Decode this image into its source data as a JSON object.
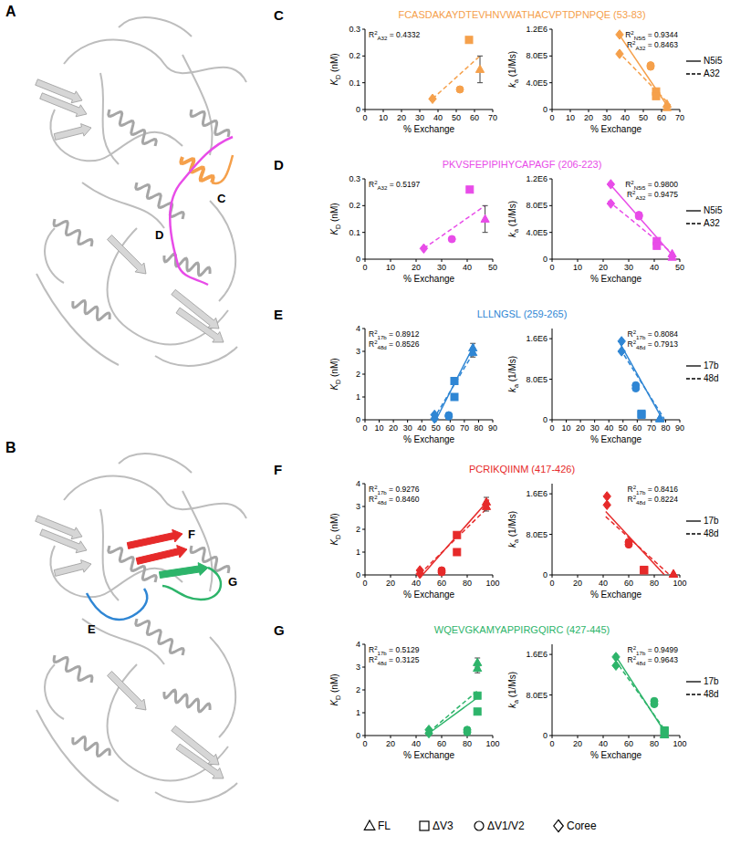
{
  "constructs": [
    {
      "label": "FL",
      "marker": "triangle"
    },
    {
      "label": "ΔV3",
      "marker": "square"
    },
    {
      "label": "ΔV1/V2",
      "marker": "circle"
    },
    {
      "label": "Coree",
      "marker": "diamond"
    }
  ],
  "structures": [
    {
      "label": "A",
      "regions": [
        {
          "label": "C",
          "color": "#f5a04b"
        },
        {
          "label": "D",
          "color": "#e84ce8"
        }
      ]
    },
    {
      "label": "B",
      "regions": [
        {
          "label": "F",
          "color": "#e62a2a"
        },
        {
          "label": "G",
          "color": "#2db46a"
        },
        {
          "label": "E",
          "color": "#2f86d4"
        }
      ]
    }
  ],
  "rows": [
    {
      "label": "C",
      "title": "FCASDAKAYDTEVHNVWATHACVPTDPNPQE (53-83)",
      "color": "#f5a04b",
      "legend": [
        {
          "name": "N5i5",
          "line_style": "solid"
        },
        {
          "name": "A32",
          "line_style": "dashed"
        }
      ]
    },
    {
      "label": "D",
      "title": "PKVSFEPIPIHYCAPAGF (206-223)",
      "color": "#e84ce8",
      "legend": [
        {
          "name": "N5i5",
          "line_style": "solid"
        },
        {
          "name": "A32",
          "line_style": "dashed"
        }
      ]
    },
    {
      "label": "E",
      "title": "LLLNGSL (259-265)",
      "color": "#2f86d4",
      "legend": [
        {
          "name": "17b",
          "line_style": "solid"
        },
        {
          "name": "48d",
          "line_style": "dashed"
        }
      ]
    },
    {
      "label": "F",
      "title": "PCRIKQIINM (417-426)",
      "color": "#e62a2a",
      "legend": [
        {
          "name": "17b",
          "line_style": "solid"
        },
        {
          "name": "48d",
          "line_style": "dashed"
        }
      ]
    },
    {
      "label": "G",
      "title": "WQEVGKAMYAPPIRGQIRC (427-445)",
      "color": "#2db46a",
      "legend": [
        {
          "name": "17b",
          "line_style": "solid"
        },
        {
          "name": "48d",
          "line_style": "dashed"
        }
      ]
    }
  ],
  "chart_data": [
    {
      "type": "scatter",
      "x_label": "% Exchange",
      "y_label": {
        "text": "K",
        "sub": "D",
        "rest": " (nM)"
      },
      "xlim": [
        0,
        70
      ],
      "xticks": [
        0,
        10,
        20,
        30,
        40,
        50,
        60,
        70
      ],
      "ylim": [
        0,
        0.3
      ],
      "yticks": [
        0,
        0.1,
        0.2,
        0.3
      ],
      "series": [
        {
          "name": "A32",
          "color": "#f5a04b",
          "line_style": "dashed",
          "x": [
            63,
            57,
            52,
            37
          ],
          "values": [
            0.15,
            0.26,
            0.075,
            0.04
          ],
          "errors": [
            0.05,
            null,
            null,
            null
          ],
          "fit": {
            "x": [
              37,
              63
            ],
            "values": [
              0.04,
              0.2
            ]
          },
          "annotation": {
            "text": "R",
            "sup": "2",
            "sub": "A32",
            "rest": " = 0.4332"
          }
        }
      ]
    },
    {
      "type": "scatter",
      "x_label": "% Exchange",
      "y_label": {
        "text": "k",
        "sub": "a",
        "rest": " (1/Ms)"
      },
      "xlim": [
        0,
        70
      ],
      "xticks": [
        0,
        10,
        20,
        30,
        40,
        50,
        60,
        70
      ],
      "ylim": [
        0,
        1200000
      ],
      "yticks": [
        0,
        {
          "value": 400000,
          "label": "4.0E5"
        },
        {
          "value": 800000,
          "label": "8.0E5"
        },
        {
          "value": 1200000,
          "label": "1.2E6"
        }
      ],
      "series": [
        {
          "name": "N5i5",
          "color": "#f5a04b",
          "line_style": "solid",
          "x": [
            63,
            57,
            54,
            37
          ],
          "values": [
            80000,
            270000,
            660000,
            1120000
          ],
          "fit": {
            "x": [
              36,
              64
            ],
            "values": [
              1150000,
              20000
            ]
          },
          "annotation": {
            "text": "R",
            "sup": "2",
            "sub": "N5i5",
            "rest": " = 0.9344"
          }
        },
        {
          "name": "A32",
          "color": "#f5a04b",
          "line_style": "dashed",
          "x": [
            63,
            57,
            54,
            37
          ],
          "values": [
            30000,
            200000,
            640000,
            830000
          ],
          "fit": {
            "x": [
              36,
              65
            ],
            "values": [
              870000,
              60000
            ]
          },
          "annotation": {
            "text": "R",
            "sup": "2",
            "sub": "A32",
            "rest": " = 0.8463"
          }
        }
      ]
    },
    {
      "type": "scatter",
      "x_label": "% Exchange",
      "y_label": {
        "text": "K",
        "sub": "D",
        "rest": " (nM)"
      },
      "xlim": [
        0,
        50
      ],
      "xticks": [
        0,
        10,
        20,
        30,
        40,
        50
      ],
      "ylim": [
        0,
        0.3
      ],
      "yticks": [
        0,
        0.1,
        0.2,
        0.3
      ],
      "series": [
        {
          "name": "A32",
          "color": "#e84ce8",
          "line_style": "dashed",
          "x": [
            47,
            41,
            34,
            23
          ],
          "values": [
            0.15,
            0.26,
            0.075,
            0.04
          ],
          "errors": [
            0.05,
            null,
            null,
            null
          ],
          "fit": {
            "x": [
              23,
              47
            ],
            "values": [
              0.04,
              0.2
            ]
          },
          "annotation": {
            "text": "R",
            "sup": "2",
            "sub": "A32",
            "rest": " = 0.5197"
          }
        }
      ]
    },
    {
      "type": "scatter",
      "x_label": "% Exchange",
      "y_label": {
        "text": "k",
        "sub": "a",
        "rest": " (1/Ms)"
      },
      "xlim": [
        0,
        50
      ],
      "xticks": [
        0,
        10,
        20,
        30,
        40,
        50
      ],
      "ylim": [
        0,
        1200000
      ],
      "yticks": [
        0,
        {
          "value": 400000,
          "label": "4.0E5"
        },
        {
          "value": 800000,
          "label": "8.0E5"
        },
        {
          "value": 1200000,
          "label": "1.2E6"
        }
      ],
      "series": [
        {
          "name": "N5i5",
          "color": "#e84ce8",
          "line_style": "solid",
          "x": [
            47,
            41,
            34,
            23
          ],
          "values": [
            80000,
            270000,
            660000,
            1120000
          ],
          "fit": {
            "x": [
              22,
              48
            ],
            "values": [
              1150000,
              20000
            ]
          },
          "annotation": {
            "text": "R",
            "sup": "2",
            "sub": "N5i5",
            "rest": " = 0.9800"
          }
        },
        {
          "name": "A32",
          "color": "#e84ce8",
          "line_style": "dashed",
          "x": [
            47,
            41,
            34,
            23
          ],
          "values": [
            30000,
            200000,
            640000,
            830000
          ],
          "fit": {
            "x": [
              22,
              48
            ],
            "values": [
              870000,
              60000
            ]
          },
          "annotation": {
            "text": "R",
            "sup": "2",
            "sub": "A32",
            "rest": " = 0.9475"
          }
        }
      ]
    },
    {
      "type": "scatter",
      "x_label": "% Exchange",
      "y_label": {
        "text": "K",
        "sub": "D",
        "rest": " (nM)"
      },
      "xlim": [
        0,
        90
      ],
      "xticks": [
        0,
        10,
        20,
        30,
        40,
        50,
        60,
        70,
        80,
        90
      ],
      "ylim": [
        0,
        4
      ],
      "yticks": [
        0,
        1,
        2,
        3,
        4
      ],
      "series": [
        {
          "name": "17b",
          "color": "#2f86d4",
          "line_style": "solid",
          "x": [
            76,
            63,
            59,
            49
          ],
          "values": [
            3.15,
            1.7,
            0.2,
            0.22
          ],
          "errors": [
            0.2,
            null,
            null,
            null
          ],
          "fit": {
            "x": [
              50,
              77
            ],
            "values": [
              0,
              3.3
            ]
          },
          "annotation": {
            "text": "R",
            "sup": "2",
            "sub": "17b",
            "rest": " = 0.8912"
          }
        },
        {
          "name": "48d",
          "color": "#2f86d4",
          "line_style": "dashed",
          "x": [
            76,
            63,
            59,
            49
          ],
          "values": [
            2.95,
            1.0,
            0.15,
            0.05
          ],
          "errors": [
            0.2,
            null,
            null,
            null
          ],
          "fit": {
            "x": [
              48,
              77
            ],
            "values": [
              0,
              3.0
            ]
          },
          "annotation": {
            "text": "R",
            "sup": "2",
            "sub": "48d",
            "rest": " = 0.8526"
          }
        }
      ]
    },
    {
      "type": "scatter",
      "x_label": "% Exchange",
      "y_label": {
        "text": "k",
        "sub": "a",
        "rest": " (1/Ms)"
      },
      "xlim": [
        0,
        90
      ],
      "xticks": [
        0,
        10,
        20,
        30,
        40,
        50,
        60,
        70,
        80,
        90
      ],
      "ylim": [
        0,
        1800000
      ],
      "yticks": [
        0,
        {
          "value": 800000,
          "label": "8.0E5"
        },
        {
          "value": 1600000,
          "label": "1.6E6"
        }
      ],
      "series": [
        {
          "name": "17b",
          "color": "#2f86d4",
          "line_style": "solid",
          "x": [
            76,
            63,
            59,
            49
          ],
          "values": [
            30000,
            100000,
            680000,
            1550000
          ],
          "fit": {
            "x": [
              48,
              78
            ],
            "values": [
              1500000,
              0
            ]
          },
          "annotation": {
            "text": "R",
            "sup": "2",
            "sub": "17b",
            "rest": " = 0.8084"
          }
        },
        {
          "name": "48d",
          "color": "#2f86d4",
          "line_style": "dashed",
          "x": [
            76,
            63,
            59,
            49
          ],
          "values": [
            20000,
            120000,
            620000,
            1350000
          ],
          "fit": {
            "x": [
              48,
              79
            ],
            "values": [
              1400000,
              20000
            ]
          },
          "annotation": {
            "text": "R",
            "sup": "2",
            "sub": "48d",
            "rest": " = 0.7913"
          }
        }
      ]
    },
    {
      "type": "scatter",
      "x_label": "% Exchange",
      "y_label": {
        "text": "K",
        "sub": "D",
        "rest": " (nM)"
      },
      "xlim": [
        0,
        100
      ],
      "xticks": [
        0,
        20,
        40,
        60,
        80,
        100
      ],
      "ylim": [
        0,
        4
      ],
      "yticks": [
        0,
        1,
        2,
        3,
        4
      ],
      "series": [
        {
          "name": "17b",
          "color": "#e62a2a",
          "line_style": "solid",
          "x": [
            95,
            72,
            60,
            43
          ],
          "values": [
            3.2,
            1.75,
            0.2,
            0.2
          ],
          "errors": [
            0.2,
            null,
            null,
            null
          ],
          "fit": {
            "x": [
              45,
              97
            ],
            "values": [
              0,
              3.3
            ]
          },
          "annotation": {
            "text": "R",
            "sup": "2",
            "sub": "17b",
            "rest": " = 0.9276"
          }
        },
        {
          "name": "48d",
          "color": "#e62a2a",
          "line_style": "dashed",
          "x": [
            95,
            72,
            60,
            43
          ],
          "values": [
            3.0,
            1.0,
            0.12,
            0.05
          ],
          "errors": [
            0.2,
            null,
            null,
            null
          ],
          "fit": {
            "x": [
              43,
              97
            ],
            "values": [
              0.05,
              3.0
            ]
          },
          "annotation": {
            "text": "R",
            "sup": "2",
            "sub": "48d",
            "rest": " = 0.8460"
          }
        }
      ]
    },
    {
      "type": "scatter",
      "x_label": "% Exchange",
      "y_label": {
        "text": "k",
        "sub": "a",
        "rest": " (1/Ms)"
      },
      "xlim": [
        0,
        100
      ],
      "xticks": [
        0,
        20,
        40,
        60,
        80,
        100
      ],
      "ylim": [
        0,
        1800000
      ],
      "yticks": [
        0,
        {
          "value": 800000,
          "label": "8.0E5"
        },
        {
          "value": 1600000,
          "label": "1.6E6"
        }
      ],
      "series": [
        {
          "name": "17b",
          "color": "#e62a2a",
          "line_style": "solid",
          "x": [
            95,
            72,
            60,
            43
          ],
          "values": [
            20000,
            100000,
            650000,
            1550000
          ],
          "fit": {
            "x": [
              42,
              88
            ],
            "values": [
              1250000,
              0
            ]
          },
          "annotation": {
            "text": "R",
            "sup": "2",
            "sub": "17b",
            "rest": " = 0.8416"
          }
        },
        {
          "name": "48d",
          "color": "#e62a2a",
          "line_style": "dashed",
          "x": [
            95,
            72,
            60,
            43
          ],
          "values": [
            15000,
            90000,
            600000,
            1380000
          ],
          "fit": {
            "x": [
              42,
              92
            ],
            "values": [
              1150000,
              0
            ]
          },
          "annotation": {
            "text": "R",
            "sup": "2",
            "sub": "48d",
            "rest": " = 0.8224"
          }
        }
      ]
    },
    {
      "type": "scatter",
      "x_label": "% Exchange",
      "y_label": {
        "text": "K",
        "sub": "D",
        "rest": " (nM)"
      },
      "xlim": [
        0,
        100
      ],
      "xticks": [
        0,
        20,
        40,
        60,
        80,
        100
      ],
      "ylim": [
        0,
        4
      ],
      "yticks": [
        0,
        1,
        2,
        3,
        4
      ],
      "series": [
        {
          "name": "17b",
          "color": "#2db46a",
          "line_style": "solid",
          "x": [
            88,
            88,
            80,
            50
          ],
          "values": [
            3.2,
            1.75,
            0.25,
            0.25
          ],
          "errors": [
            0.2,
            null,
            null,
            null
          ],
          "fit": {
            "x": [
              50,
              89
            ],
            "values": [
              0.1,
              1.7
            ]
          },
          "annotation": {
            "text": "R",
            "sup": "2",
            "sub": "17b",
            "rest": " = 0.5129"
          }
        },
        {
          "name": "48d",
          "color": "#2db46a",
          "line_style": "dashed",
          "x": [
            88,
            88,
            80,
            50
          ],
          "values": [
            2.95,
            1.05,
            0.15,
            0.1
          ],
          "errors": [
            0.2,
            null,
            null,
            null
          ],
          "fit": {
            "x": [
              50,
              89
            ],
            "values": [
              0.15,
              2.0
            ]
          },
          "annotation": {
            "text": "R",
            "sup": "2",
            "sub": "48d",
            "rest": " = 0.3125"
          }
        }
      ]
    },
    {
      "type": "scatter",
      "x_label": "% Exchange",
      "y_label": {
        "text": "k",
        "sub": "a",
        "rest": " (1/Ms)"
      },
      "xlim": [
        0,
        100
      ],
      "xticks": [
        0,
        20,
        40,
        60,
        80,
        100
      ],
      "ylim": [
        0,
        1800000
      ],
      "yticks": [
        0,
        {
          "value": 800000,
          "label": "8.0E5"
        },
        {
          "value": 1600000,
          "label": "1.6E6"
        }
      ],
      "series": [
        {
          "name": "17b",
          "color": "#2db46a",
          "line_style": "solid",
          "x": [
            88,
            88,
            80,
            50
          ],
          "values": [
            20000,
            100000,
            680000,
            1550000
          ],
          "fit": {
            "x": [
              49,
              90
            ],
            "values": [
              1600000,
              0
            ]
          },
          "annotation": {
            "text": "R",
            "sup": "2",
            "sub": "17b",
            "rest": " = 0.9499"
          }
        },
        {
          "name": "48d",
          "color": "#2db46a",
          "line_style": "dashed",
          "x": [
            88,
            88,
            80,
            50
          ],
          "values": [
            15000,
            90000,
            620000,
            1380000
          ],
          "fit": {
            "x": [
              49,
              90
            ],
            "values": [
              1500000,
              50000
            ]
          },
          "annotation": {
            "text": "R",
            "sup": "2",
            "sub": "48d",
            "rest": " = 0.9643"
          }
        }
      ]
    }
  ]
}
